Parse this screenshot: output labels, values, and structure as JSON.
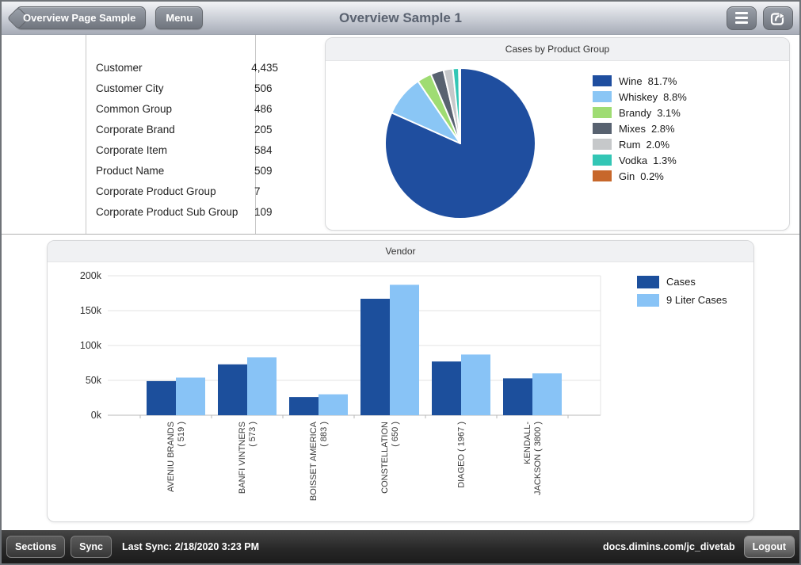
{
  "topbar": {
    "back_button": "Overview Page Sample",
    "menu_button": "Menu",
    "title": "Overview Sample 1"
  },
  "stats": {
    "rows": [
      {
        "label": "Customer",
        "value": "4,435"
      },
      {
        "label": "Customer City",
        "value": "506"
      },
      {
        "label": "Common Group",
        "value": "486"
      },
      {
        "label": "Corporate Brand",
        "value": "205"
      },
      {
        "label": "Corporate Item",
        "value": "584"
      },
      {
        "label": "Product Name",
        "value": "509"
      },
      {
        "label": "Corporate Product Group",
        "value": "7"
      },
      {
        "label": "Corporate Product Sub Group",
        "value": "109"
      }
    ]
  },
  "chart_data": [
    {
      "type": "pie",
      "title": "Cases by Product Group",
      "legend_position": "right",
      "slices": [
        {
          "label": "Wine",
          "pct": 81.7,
          "color": "#1F4E9F"
        },
        {
          "label": "Whiskey",
          "pct": 8.8,
          "color": "#8AC6F5"
        },
        {
          "label": "Brandy",
          "pct": 3.1,
          "color": "#9FDC73"
        },
        {
          "label": "Mixes",
          "pct": 2.8,
          "color": "#586270"
        },
        {
          "label": "Rum",
          "pct": 2.0,
          "color": "#C6C8CA"
        },
        {
          "label": "Vodka",
          "pct": 1.3,
          "color": "#33C6B5"
        },
        {
          "label": "Gin",
          "pct": 0.2,
          "color": "#C7672B"
        }
      ]
    },
    {
      "type": "bar",
      "title": "Vendor",
      "grid": true,
      "legend_position": "top-right",
      "ylim": [
        0,
        200000
      ],
      "yticks": [
        {
          "value": 0,
          "label": "0k"
        },
        {
          "value": 50000,
          "label": "50k"
        },
        {
          "value": 100000,
          "label": "100k"
        },
        {
          "value": 150000,
          "label": "150k"
        },
        {
          "value": 200000,
          "label": "200k"
        }
      ],
      "categories": [
        {
          "name": "AVENIU BRANDS",
          "label_lines": [
            "AVENIU BRANDS",
            "( 519 )"
          ]
        },
        {
          "name": "BANFI VINTNERS",
          "label_lines": [
            "BANFI VINTNERS",
            "( 573 )"
          ]
        },
        {
          "name": "BOISSET AMERICA",
          "label_lines": [
            "BOISSET AMERICA",
            "( 883 )"
          ]
        },
        {
          "name": "CONSTELLATION",
          "label_lines": [
            "CONSTELLATION",
            "( 650 )"
          ]
        },
        {
          "name": "DIAGEO",
          "label_lines": [
            "DIAGEO ( 1967 )"
          ]
        },
        {
          "name": "KENDALL-JACKSON",
          "label_lines": [
            "KENDALL-",
            "JACKSON ( 3800 )"
          ]
        }
      ],
      "series": [
        {
          "name": "Cases",
          "color": "#1C4F9C",
          "values": [
            49000,
            73000,
            26000,
            167000,
            77000,
            53000
          ]
        },
        {
          "name": "9 Liter Cases",
          "color": "#88C3F6",
          "values": [
            54000,
            83000,
            30000,
            187000,
            87000,
            60000
          ]
        }
      ]
    }
  ],
  "bottombar": {
    "sections_button": "Sections",
    "sync_button": "Sync",
    "last_sync": "Last Sync: 2/18/2020 3:23 PM",
    "url": "docs.dimins.com/jc_divetab",
    "logout_button": "Logout"
  }
}
